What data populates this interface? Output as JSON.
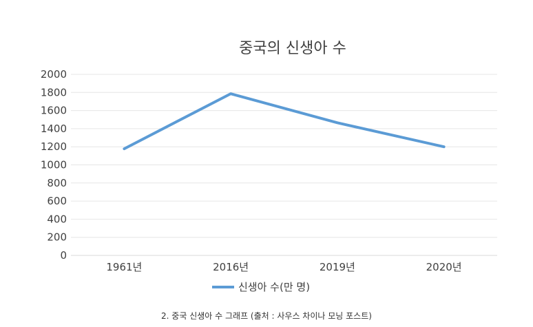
{
  "chart_data": {
    "type": "line",
    "title": "중국의 신생아 수",
    "categories": [
      "1961년",
      "2016년",
      "2019년",
      "2020년"
    ],
    "series": [
      {
        "name": "신생아 수(만 명)",
        "values": [
          1178,
          1786,
          1465,
          1200
        ],
        "color": "#5b9bd5"
      }
    ],
    "ylim": [
      0,
      2000
    ],
    "yticks": [
      0,
      200,
      400,
      600,
      800,
      1000,
      1200,
      1400,
      1600,
      1800,
      2000
    ],
    "grid": true,
    "legend": "bottom"
  },
  "caption": "2. 중국 신생아 수 그래프 (출처 : 사우스 차이나 모닝 포스트)"
}
